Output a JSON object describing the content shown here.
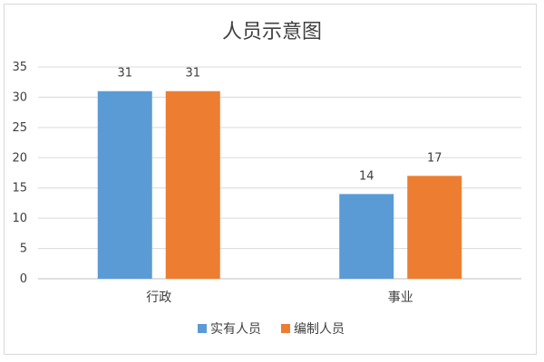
{
  "chart_data": {
    "type": "bar",
    "title": "人员示意图",
    "categories": [
      "行政",
      "事业"
    ],
    "series": [
      {
        "name": "实有人员",
        "values": [
          31,
          14
        ],
        "color": "#5b9bd5"
      },
      {
        "name": "编制人员",
        "values": [
          31,
          17
        ],
        "color": "#ed7d31"
      }
    ],
    "ylim": [
      0,
      35
    ],
    "yticks": [
      0,
      5,
      10,
      15,
      20,
      25,
      30,
      35
    ],
    "grid": true,
    "legend_position": "bottom",
    "data_labels": true
  }
}
